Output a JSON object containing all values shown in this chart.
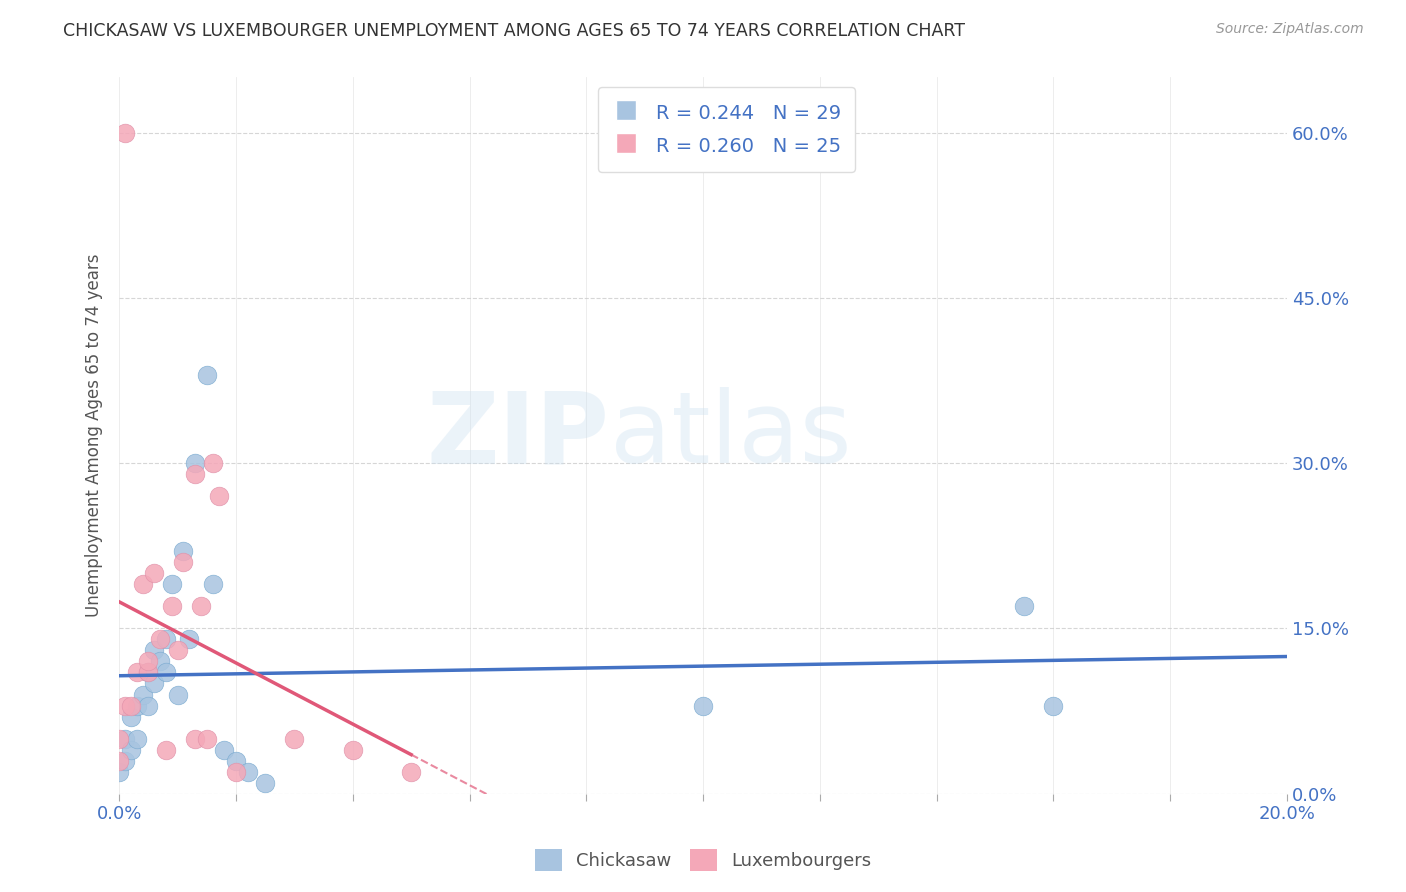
{
  "title": "CHICKASAW VS LUXEMBOURGER UNEMPLOYMENT AMONG AGES 65 TO 74 YEARS CORRELATION CHART",
  "source": "Source: ZipAtlas.com",
  "ylabel": "Unemployment Among Ages 65 to 74 years",
  "xlim": [
    0.0,
    0.2
  ],
  "ylim": [
    0.0,
    0.65
  ],
  "xticks": [
    0.0,
    0.02,
    0.04,
    0.06,
    0.08,
    0.1,
    0.12,
    0.14,
    0.16,
    0.18,
    0.2
  ],
  "yticks": [
    0.0,
    0.15,
    0.3,
    0.45,
    0.6
  ],
  "ytick_labels_right": [
    "0.0%",
    "15.0%",
    "30.0%",
    "45.0%",
    "60.0%"
  ],
  "chickasaw_R": 0.244,
  "chickasaw_N": 29,
  "luxembourger_R": 0.26,
  "luxembourger_N": 25,
  "chickasaw_color": "#a8c4e0",
  "luxembourger_color": "#f4a8b8",
  "chickasaw_line_color": "#4472c4",
  "luxembourger_line_color": "#e05878",
  "background_color": "#ffffff",
  "grid_color": "#cccccc",
  "watermark_zip": "ZIP",
  "watermark_atlas": "atlas",
  "chickasaw_x": [
    0.0,
    0.001,
    0.001,
    0.002,
    0.002,
    0.003,
    0.003,
    0.004,
    0.005,
    0.005,
    0.006,
    0.006,
    0.007,
    0.008,
    0.008,
    0.009,
    0.01,
    0.011,
    0.012,
    0.013,
    0.015,
    0.016,
    0.018,
    0.02,
    0.022,
    0.025,
    0.1,
    0.155,
    0.16
  ],
  "chickasaw_y": [
    0.02,
    0.03,
    0.05,
    0.04,
    0.07,
    0.05,
    0.08,
    0.09,
    0.08,
    0.11,
    0.1,
    0.13,
    0.12,
    0.11,
    0.14,
    0.19,
    0.09,
    0.22,
    0.14,
    0.3,
    0.38,
    0.19,
    0.04,
    0.03,
    0.02,
    0.01,
    0.08,
    0.17,
    0.08
  ],
  "luxembourger_x": [
    0.0,
    0.0,
    0.001,
    0.001,
    0.002,
    0.003,
    0.004,
    0.005,
    0.005,
    0.006,
    0.007,
    0.008,
    0.009,
    0.01,
    0.011,
    0.013,
    0.014,
    0.015,
    0.016,
    0.017,
    0.02,
    0.03,
    0.04,
    0.05,
    0.013
  ],
  "luxembourger_y": [
    0.03,
    0.05,
    0.08,
    0.6,
    0.08,
    0.11,
    0.19,
    0.11,
    0.12,
    0.2,
    0.14,
    0.04,
    0.17,
    0.13,
    0.21,
    0.05,
    0.17,
    0.05,
    0.3,
    0.27,
    0.02,
    0.05,
    0.04,
    0.02,
    0.29
  ]
}
